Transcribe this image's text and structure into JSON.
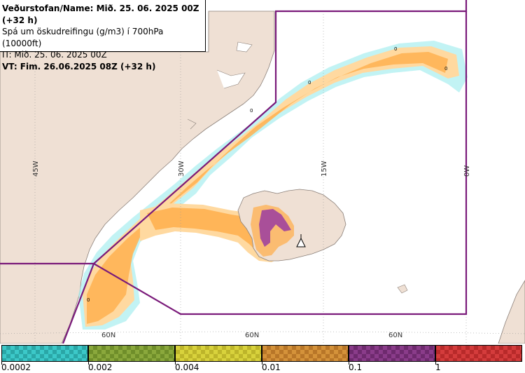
{
  "info": {
    "line1": "Veðurstofan/Name: Mið. 25. 06. 2025 00Z (+32 h)",
    "line2": "Spá um öskudreifingu (g/m3) í 700hPa (10000ft)",
    "line3": "IT: Mið. 25. 06. 2025 00Z",
    "line4": "VT: Fim. 26.06.2025 08Z (+32 h)"
  },
  "grid_labels": {
    "lon_45w": "45W",
    "lon_30w": "30W",
    "lon_15w": "15W",
    "lon_0w": "0W",
    "lat_a": "60N",
    "lat_b": "60N",
    "lat_c": "60N"
  },
  "contour_labels": [
    "0",
    "0",
    "0",
    "0",
    "0"
  ],
  "legend": {
    "bins": [
      {
        "color": "#3cc8c8",
        "alt": "#2aa7a7"
      },
      {
        "color": "#8aa83c",
        "alt": "#6f8e2a"
      },
      {
        "color": "#d8d23c",
        "alt": "#bdb52a"
      },
      {
        "color": "#d4923a",
        "alt": "#b87628"
      },
      {
        "color": "#8a3c8a",
        "alt": "#6e2a6e"
      },
      {
        "color": "#d43c3c",
        "alt": "#b82a2a"
      }
    ],
    "thresholds": [
      "0.0002",
      "0.002",
      "0.004",
      "0.01",
      "0.1",
      "1"
    ]
  },
  "colors": {
    "land": "#efe0d4",
    "sea": "#ffffff",
    "boundary": "#7a1a7a",
    "plume_light": "#ffd9a0",
    "plume_orange": "#ffb050",
    "plume_purple": "#9a3ca0",
    "plume_cyan": "#a8eef0"
  }
}
